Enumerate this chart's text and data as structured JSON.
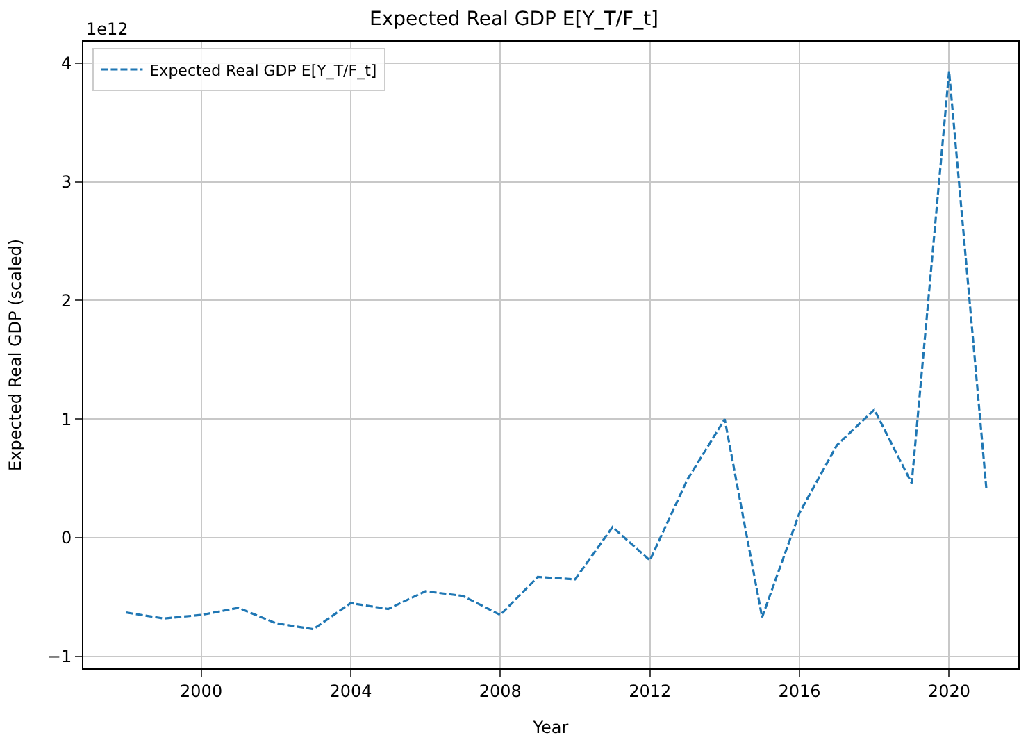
{
  "chart_data": {
    "type": "line",
    "title": "Expected Real GDP E[Y_T/F_t]",
    "xlabel": "Year",
    "ylabel": "Expected Real GDP (scaled)",
    "annotations": [
      "1e12"
    ],
    "x": [
      1998,
      1999,
      2000,
      2001,
      2002,
      2003,
      2004,
      2005,
      2006,
      2007,
      2008,
      2009,
      2010,
      2011,
      2012,
      2013,
      2014,
      2015,
      2016,
      2017,
      2018,
      2019,
      2020,
      2021
    ],
    "series": [
      {
        "name": "Expected Real GDP E[Y_T/F_t]",
        "color": "#1f77b4",
        "values": [
          -0.63,
          -0.68,
          -0.65,
          -0.59,
          -0.72,
          -0.77,
          -0.55,
          -0.6,
          -0.45,
          -0.49,
          -0.65,
          -0.33,
          -0.35,
          0.09,
          -0.19,
          0.49,
          1.0,
          -0.67,
          0.21,
          0.78,
          1.08,
          0.46,
          3.93,
          0.4
        ]
      }
    ],
    "xlim": [
      1996.85,
      2021.85
    ],
    "xticks": [
      2000,
      2004,
      2008,
      2012,
      2016,
      2020
    ],
    "ylim": [
      -1.1,
      4.18
    ],
    "yticks": [
      -1,
      0,
      1,
      2,
      3,
      4
    ],
    "grid": true,
    "legend": "top left",
    "marker": "none",
    "line_style": "dashed"
  }
}
